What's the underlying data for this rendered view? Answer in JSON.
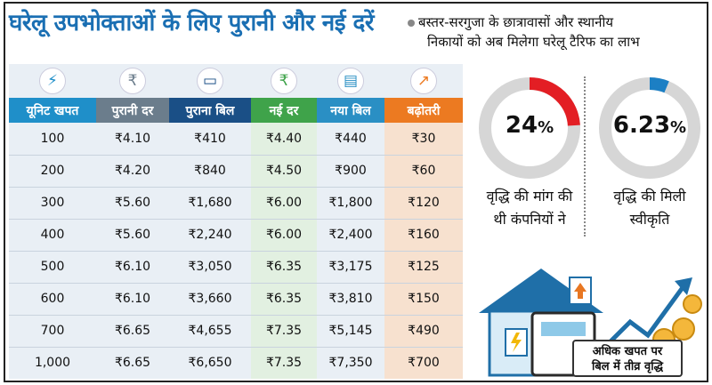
{
  "title": "घरेलू उपभोक्ताओं के लिए पुरानी और नई दरें",
  "note": {
    "line1": "बस्तर-सरगुजा के छात्रावासों और स्थानीय",
    "line2": "निकायों को अब मिलेगा घरेलू टैरिफ का लाभ"
  },
  "icons": [
    "lightning-icon",
    "rupee-icon",
    "cash-icon",
    "rupee-icon",
    "bill-icon",
    "growth-chart-icon"
  ],
  "headers": [
    "यूनिट खपत",
    "पुरानी दर",
    "पुराना बिल",
    "नई दर",
    "नया बिल",
    "बढ़ोतरी"
  ],
  "header_colors": [
    "#1f8fc9",
    "#6b7d8c",
    "#1a4f86",
    "#3fa34a",
    "#2a8fc4",
    "#ec7a21"
  ],
  "rows": [
    [
      "100",
      "₹4.10",
      "₹410",
      "₹4.40",
      "₹440",
      "₹30"
    ],
    [
      "200",
      "₹4.20",
      "₹840",
      "₹4.50",
      "₹900",
      "₹60"
    ],
    [
      "300",
      "₹5.60",
      "₹1,680",
      "₹6.00",
      "₹1,800",
      "₹120"
    ],
    [
      "400",
      "₹5.60",
      "₹2,240",
      "₹6.00",
      "₹2,400",
      "₹160"
    ],
    [
      "500",
      "₹6.10",
      "₹3,050",
      "₹6.35",
      "₹3,175",
      "₹125"
    ],
    [
      "600",
      "₹6.10",
      "₹3,660",
      "₹6.35",
      "₹3,810",
      "₹150"
    ],
    [
      "700",
      "₹6.65",
      "₹4,655",
      "₹7.35",
      "₹5,145",
      "₹490"
    ],
    [
      "1,000",
      "₹6.65",
      "₹6,650",
      "₹7.35",
      "₹7,350",
      "₹700"
    ]
  ],
  "gauges": [
    {
      "value": "24",
      "unit": "%",
      "fraction": 0.24,
      "color": "#e31e24",
      "caption1": "वृद्धि की मांग की",
      "caption2": "थी कंपनियों ने"
    },
    {
      "value": "6.23",
      "unit": "%",
      "fraction": 0.0623,
      "color": "#1c7fc4",
      "caption1": "वृद्धि की मिली",
      "caption2": "स्वीकृति"
    }
  ],
  "illustration": {
    "line1": "अधिक खपत पर",
    "line2": "बिल में तीव्र वृद्धि"
  }
}
